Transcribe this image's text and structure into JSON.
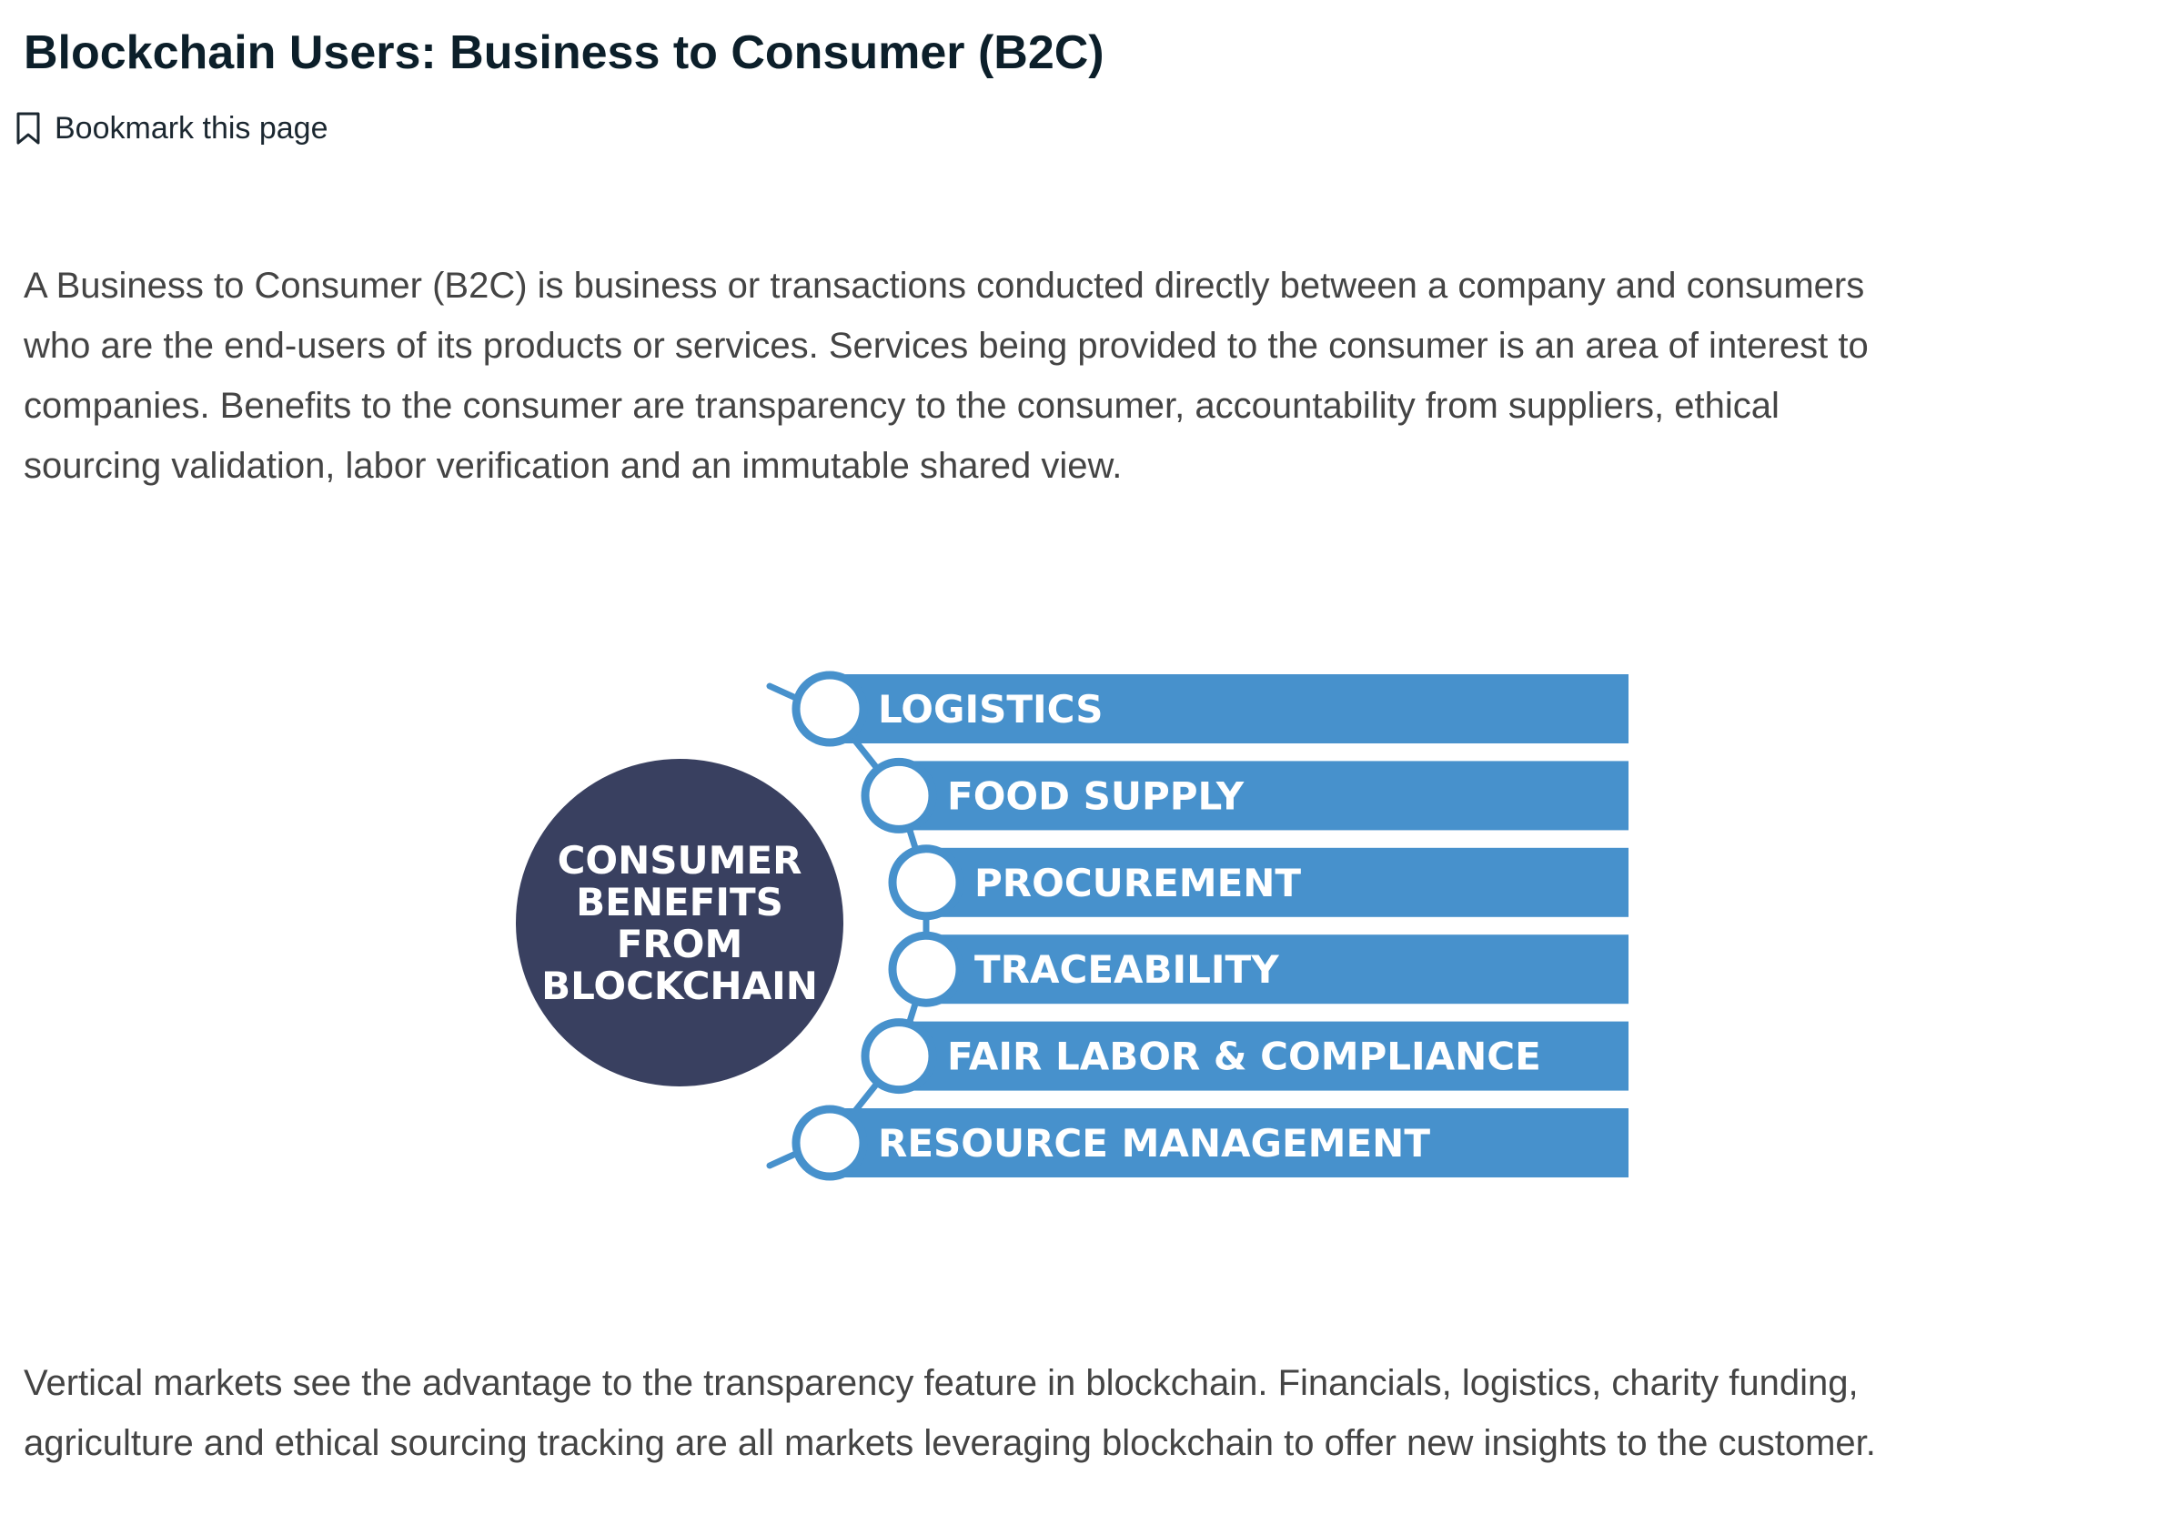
{
  "page": {
    "title": "Blockchain Users: Business to Consumer (B2C)",
    "bookmark_label": "Bookmark this page"
  },
  "intro": {
    "lines": [
      "A Business to Consumer (B2C) is business or transactions conducted directly between a company and consumers",
      "who are the end-users of its products or services. Services being provided to the consumer is an area of interest to",
      "companies. Benefits to the consumer are transparency to the consumer, accountability from suppliers, ethical",
      "sourcing validation, labor verification and an immutable shared view."
    ]
  },
  "diagram": {
    "hub_lines": [
      "CONSUMER",
      "BENEFITS",
      "FROM",
      "BLOCKCHAIN"
    ],
    "items": [
      "LOGISTICS",
      "FOOD SUPPLY",
      "PROCUREMENT",
      "TRACEABILITY",
      "FAIR LABOR & COMPLIANCE",
      "RESOURCE MANAGEMENT"
    ],
    "colors": {
      "hub": "#394060",
      "bar": "#4791cc",
      "text": "#ffffff"
    }
  },
  "closing": {
    "lines": [
      "Vertical markets see the advantage to the transparency feature in blockchain. Financials, logistics, charity funding,",
      "agriculture and ethical sourcing tracking are all markets leveraging blockchain to offer new insights to the customer."
    ]
  },
  "icons": {
    "bookmark": "bookmark-icon"
  }
}
